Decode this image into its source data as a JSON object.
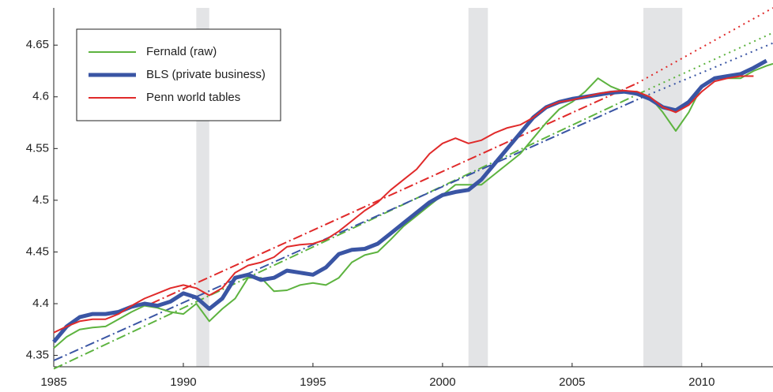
{
  "chart_data": {
    "type": "line",
    "xlim": [
      1985,
      2012.75
    ],
    "ylim": [
      4.339,
      4.686
    ],
    "xticks": [
      1985,
      1990,
      1995,
      2000,
      2005,
      2010
    ],
    "yticks": [
      4.35,
      4.4,
      4.45,
      4.5,
      4.55,
      4.6,
      4.65
    ],
    "legend": "top-left",
    "recessions": [
      [
        1990.5,
        1991.0
      ],
      [
        2001.0,
        2001.75
      ],
      [
        2007.75,
        2009.25
      ]
    ],
    "series": [
      {
        "name": "Fernald (raw)",
        "color": "#5db33f",
        "width": 2,
        "x": [
          1985,
          1985.5,
          1986,
          1986.5,
          1987,
          1987.5,
          1988,
          1988.5,
          1989,
          1989.5,
          1990,
          1990.5,
          1991,
          1991.5,
          1992,
          1992.5,
          1993,
          1993.5,
          1994,
          1994.5,
          1995,
          1995.5,
          1996,
          1996.5,
          1997,
          1997.5,
          1998,
          1998.5,
          1999,
          1999.5,
          2000,
          2000.5,
          2001,
          2001.5,
          2002,
          2002.5,
          2003,
          2003.5,
          2004,
          2004.5,
          2005,
          2005.5,
          2006,
          2006.5,
          2007,
          2007.5,
          2008,
          2008.5,
          2009,
          2009.5,
          2010,
          2010.5,
          2011,
          2011.5,
          2012,
          2012.5,
          2012.75
        ],
        "values": [
          4.357,
          4.368,
          4.375,
          4.377,
          4.378,
          4.385,
          4.392,
          4.398,
          4.396,
          4.392,
          4.39,
          4.4,
          4.383,
          4.395,
          4.405,
          4.425,
          4.425,
          4.412,
          4.413,
          4.418,
          4.42,
          4.418,
          4.425,
          4.44,
          4.447,
          4.45,
          4.462,
          4.475,
          4.485,
          4.495,
          4.505,
          4.515,
          4.515,
          4.515,
          4.525,
          4.535,
          4.545,
          4.56,
          4.575,
          4.588,
          4.595,
          4.605,
          4.618,
          4.61,
          4.605,
          4.605,
          4.6,
          4.585,
          4.567,
          4.585,
          4.61,
          4.618,
          4.618,
          4.618,
          4.625,
          4.63,
          4.632
        ]
      },
      {
        "name": "BLS (private business)",
        "color": "#3a55a4",
        "width": 5,
        "x": [
          1985,
          1985.5,
          1986,
          1986.5,
          1987,
          1987.5,
          1988,
          1988.5,
          1989,
          1989.5,
          1990,
          1990.5,
          1991,
          1991.5,
          1992,
          1992.5,
          1993,
          1993.5,
          1994,
          1994.5,
          1995,
          1995.5,
          1996,
          1996.5,
          1997,
          1997.5,
          1998,
          1998.5,
          1999,
          1999.5,
          2000,
          2000.5,
          2001,
          2001.5,
          2002,
          2002.5,
          2003,
          2003.5,
          2004,
          2004.5,
          2005,
          2005.5,
          2006,
          2006.5,
          2007,
          2007.5,
          2008,
          2008.5,
          2009,
          2009.5,
          2010,
          2010.5,
          2011,
          2011.5,
          2012,
          2012.5
        ],
        "values": [
          4.363,
          4.378,
          4.387,
          4.39,
          4.39,
          4.392,
          4.397,
          4.4,
          4.398,
          4.402,
          4.41,
          4.406,
          4.395,
          4.405,
          4.425,
          4.428,
          4.423,
          4.425,
          4.432,
          4.43,
          4.428,
          4.435,
          4.448,
          4.452,
          4.453,
          4.458,
          4.468,
          4.478,
          4.488,
          4.498,
          4.505,
          4.508,
          4.51,
          4.52,
          4.535,
          4.55,
          4.565,
          4.58,
          4.59,
          4.595,
          4.598,
          4.6,
          4.602,
          4.604,
          4.605,
          4.603,
          4.598,
          4.59,
          4.587,
          4.595,
          4.61,
          4.618,
          4.62,
          4.622,
          4.628,
          4.635
        ]
      },
      {
        "name": "Penn world tables",
        "color": "#e02a2a",
        "width": 2,
        "x": [
          1985,
          1985.5,
          1986,
          1986.5,
          1987,
          1987.5,
          1988,
          1988.5,
          1989,
          1989.5,
          1990,
          1990.5,
          1991,
          1991.5,
          1992,
          1992.5,
          1993,
          1993.5,
          1994,
          1994.5,
          1995,
          1995.5,
          1996,
          1996.5,
          1997,
          1997.5,
          1998,
          1998.5,
          1999,
          1999.5,
          2000,
          2000.5,
          2001,
          2001.5,
          2002,
          2002.5,
          2003,
          2003.5,
          2004,
          2004.5,
          2005,
          2005.5,
          2006,
          2006.5,
          2007,
          2007.5,
          2008,
          2008.5,
          2009,
          2009.5,
          2010,
          2010.5,
          2011,
          2011.5,
          2012
        ],
        "values": [
          4.372,
          4.378,
          4.383,
          4.385,
          4.385,
          4.39,
          4.398,
          4.405,
          4.41,
          4.415,
          4.418,
          4.415,
          4.408,
          4.415,
          4.43,
          4.437,
          4.44,
          4.445,
          4.455,
          4.457,
          4.458,
          4.462,
          4.47,
          4.48,
          4.49,
          4.498,
          4.51,
          4.52,
          4.53,
          4.545,
          4.555,
          4.56,
          4.555,
          4.558,
          4.565,
          4.57,
          4.573,
          4.58,
          4.59,
          4.595,
          4.597,
          4.6,
          4.603,
          4.605,
          4.606,
          4.605,
          4.6,
          4.59,
          4.585,
          4.592,
          4.605,
          4.615,
          4.618,
          4.62,
          4.62
        ]
      }
    ],
    "trend_lines": [
      {
        "color": "#5db33f",
        "style": "dash-dot",
        "x": [
          1985,
          2007.75
        ],
        "values": [
          4.337,
          4.605
        ]
      },
      {
        "color": "#5db33f",
        "style": "dotted",
        "x": [
          2007.75,
          2012.75
        ],
        "values": [
          4.605,
          4.662
        ]
      },
      {
        "color": "#3a55a4",
        "style": "dash-dot",
        "x": [
          1985,
          2007.75
        ],
        "values": [
          4.345,
          4.6
        ]
      },
      {
        "color": "#3a55a4",
        "style": "dotted",
        "x": [
          2007.75,
          2012.75
        ],
        "values": [
          4.6,
          4.652
        ]
      },
      {
        "color": "#e02a2a",
        "style": "dash-dot",
        "x": [
          1988.75,
          2007.5
        ],
        "values": [
          4.4,
          4.613
        ]
      },
      {
        "color": "#e02a2a",
        "style": "dotted",
        "x": [
          2007.5,
          2012.75
        ],
        "values": [
          4.613,
          4.686
        ]
      }
    ]
  }
}
